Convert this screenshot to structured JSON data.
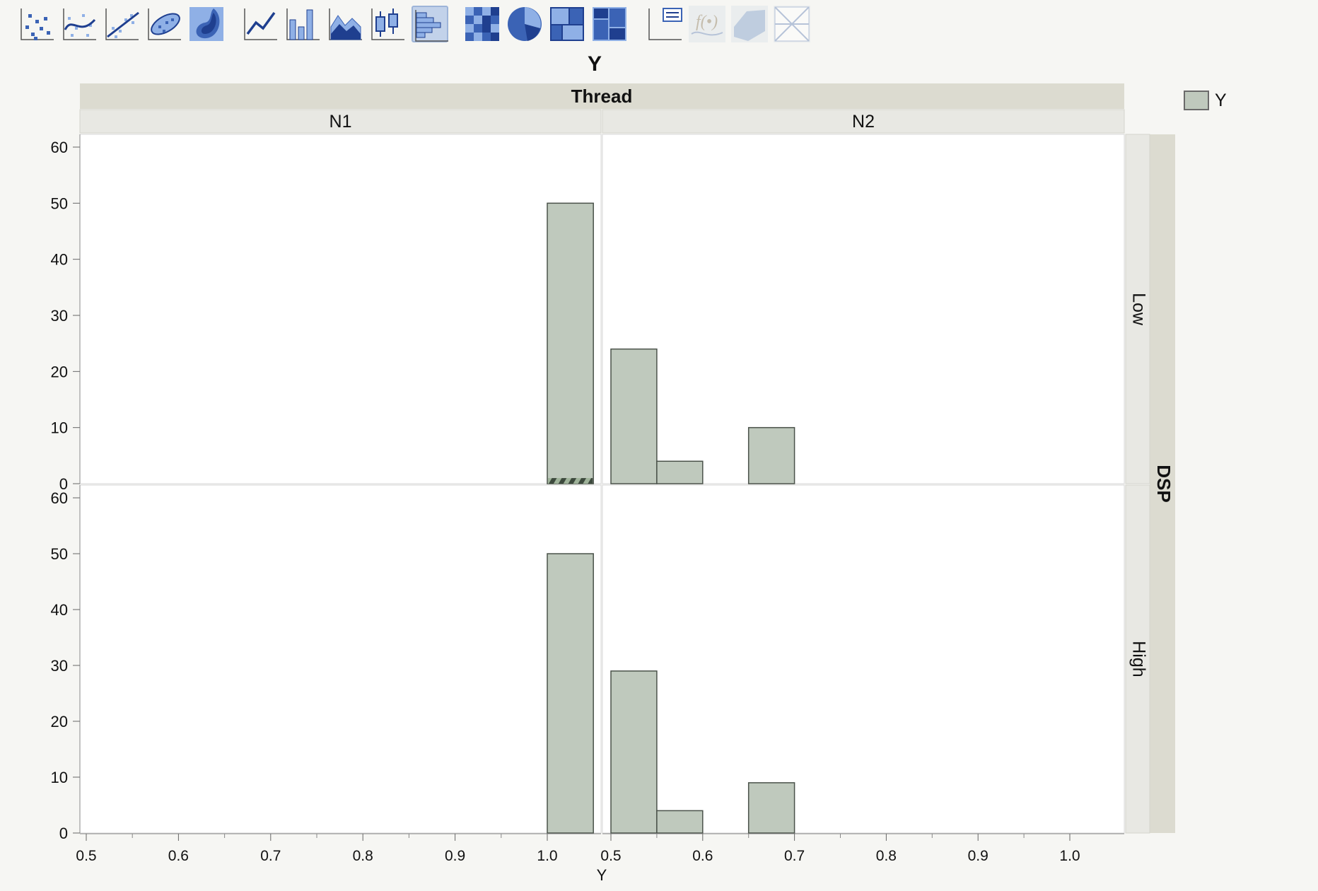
{
  "toolbar": {
    "buttons": [
      {
        "icon": "points-icon",
        "state": "normal"
      },
      {
        "icon": "smoother-icon",
        "state": "normal"
      },
      {
        "icon": "line-of-fit-icon",
        "state": "normal"
      },
      {
        "icon": "ellipse-icon",
        "state": "normal"
      },
      {
        "icon": "contour-icon",
        "state": "normal"
      },
      {
        "icon": "line-chart-icon",
        "state": "normal"
      },
      {
        "icon": "bar-chart-icon",
        "state": "normal"
      },
      {
        "icon": "area-chart-icon",
        "state": "normal"
      },
      {
        "icon": "box-plot-icon",
        "state": "normal"
      },
      {
        "icon": "histogram-icon",
        "state": "selected"
      },
      {
        "icon": "heatmap-icon",
        "state": "normal"
      },
      {
        "icon": "pie-chart-icon",
        "state": "normal"
      },
      {
        "icon": "treemap-icon",
        "state": "normal"
      },
      {
        "icon": "mosaic-icon",
        "state": "normal"
      },
      {
        "icon": "caption-box-icon",
        "state": "normal"
      },
      {
        "icon": "formula-icon",
        "state": "disabled"
      },
      {
        "icon": "parallel-icon",
        "state": "disabled"
      },
      {
        "icon": "mesh-icon",
        "state": "disabled"
      }
    ]
  },
  "colors": {
    "bar_fill": "#bfc9bd",
    "bar_stroke": "#4a524a",
    "header_dark": "#dcdbd0",
    "header_light": "#e8e8e3",
    "accent": "#2f5db0"
  },
  "chart_data": {
    "type": "bar",
    "subtype": "histogram",
    "title": "Y",
    "xlabel": "Y",
    "ylabel": "",
    "x_group_title": "Thread",
    "y_group_title": "DSP",
    "columns": [
      "N1",
      "N2"
    ],
    "rows": [
      "Low",
      "High"
    ],
    "xlim": [
      0.5,
      1.0
    ],
    "xticks": [
      "0.5",
      "0.6",
      "0.7",
      "0.8",
      "0.9",
      "1.0"
    ],
    "ylim": [
      0,
      60
    ],
    "yticks": [
      "0",
      "10",
      "20",
      "30",
      "40",
      "50",
      "60"
    ],
    "bin_width": 0.05,
    "legend": {
      "label": "Y",
      "position": "top-right"
    },
    "panels": [
      {
        "column": "N1",
        "row": "Low",
        "bins": [
          {
            "start": 1.0,
            "end": 1.05,
            "count": 50,
            "highlighted": 1
          }
        ]
      },
      {
        "column": "N2",
        "row": "Low",
        "bins": [
          {
            "start": 0.5,
            "end": 0.55,
            "count": 24
          },
          {
            "start": 0.55,
            "end": 0.6,
            "count": 4
          },
          {
            "start": 0.65,
            "end": 0.7,
            "count": 10
          }
        ]
      },
      {
        "column": "N1",
        "row": "High",
        "bins": [
          {
            "start": 1.0,
            "end": 1.05,
            "count": 50
          }
        ]
      },
      {
        "column": "N2",
        "row": "High",
        "bins": [
          {
            "start": 0.5,
            "end": 0.55,
            "count": 29
          },
          {
            "start": 0.55,
            "end": 0.6,
            "count": 4
          },
          {
            "start": 0.65,
            "end": 0.7,
            "count": 9
          }
        ]
      }
    ]
  }
}
